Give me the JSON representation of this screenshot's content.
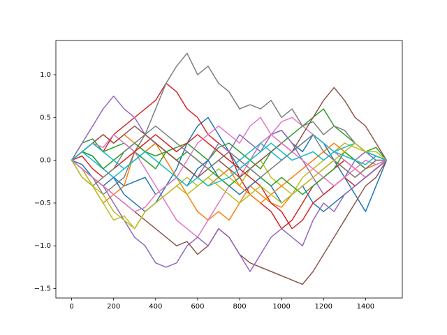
{
  "chart_data": {
    "type": "line",
    "x": [
      0,
      50,
      100,
      150,
      200,
      250,
      300,
      350,
      400,
      450,
      500,
      550,
      600,
      650,
      700,
      750,
      800,
      850,
      900,
      950,
      1000,
      1050,
      1100,
      1150,
      1200,
      1250,
      1300,
      1350,
      1400,
      1450,
      1500
    ],
    "xlim": [
      -75,
      1575
    ],
    "xticks": [
      0,
      200,
      400,
      600,
      800,
      1000,
      1200,
      1400
    ],
    "ylim": [
      -1.61,
      1.4
    ],
    "yticks": [
      {
        "value": -1.5,
        "label": "−1.5"
      },
      {
        "value": -1.0,
        "label": "−1.0"
      },
      {
        "value": -0.5,
        "label": "−0.5"
      },
      {
        "value": 0,
        "label": "0.0"
      },
      {
        "value": 0.5,
        "label": "0.5"
      },
      {
        "value": 1.0,
        "label": "1.0"
      }
    ],
    "series": [
      {
        "color": "#1f77b4",
        "values": [
          0,
          0.1,
          0.05,
          -0.1,
          -0.2,
          -0.3,
          -0.25,
          -0.2,
          -0.4,
          -0.3,
          -0.1,
          0.2,
          0.4,
          0.5,
          0.3,
          0.1,
          -0.1,
          0,
          0.2,
          0.3,
          0.35,
          0.2,
          0.1,
          0.3,
          0.2,
          0,
          -0.2,
          -0.4,
          -0.6,
          -0.3,
          0
        ]
      },
      {
        "color": "#ff7f0e",
        "values": [
          0,
          -0.1,
          -0.3,
          -0.5,
          -0.4,
          -0.3,
          0.1,
          0.3,
          0.2,
          0,
          -0.2,
          -0.4,
          -0.6,
          -0.7,
          -0.6,
          -0.7,
          -0.5,
          -0.3,
          -0.4,
          -0.5,
          -0.55,
          -0.4,
          -0.3,
          -0.2,
          -0.1,
          0,
          -0.1,
          -0.2,
          -0.1,
          0,
          0
        ]
      },
      {
        "color": "#2ca02c",
        "values": [
          0,
          0.2,
          0.25,
          0.1,
          0.15,
          0.2,
          0.1,
          0,
          -0.1,
          0.1,
          0.15,
          0.2,
          0.1,
          0,
          0.15,
          0.2,
          0.1,
          0,
          -0.1,
          0.1,
          0.2,
          0.3,
          0.4,
          0.5,
          0.6,
          0.4,
          0.3,
          0.2,
          0.1,
          0.15,
          0
        ]
      },
      {
        "color": "#d62728",
        "values": [
          0,
          0.1,
          0.2,
          0.1,
          0.3,
          0.4,
          0.5,
          0.6,
          0.7,
          0.9,
          0.8,
          0.6,
          0.5,
          0.3,
          0.2,
          0.1,
          -0.2,
          -0.4,
          -0.5,
          -0.6,
          -0.8,
          -0.7,
          -0.5,
          -0.3,
          -0.2,
          -0.1,
          0,
          -0.1,
          -0.2,
          -0.1,
          0
        ]
      },
      {
        "color": "#9467bd",
        "values": [
          0,
          0.2,
          0.4,
          0.6,
          0.75,
          0.6,
          0.5,
          0.3,
          0.2,
          0.1,
          0,
          -0.1,
          -0.2,
          0,
          0.2,
          0.1,
          0.3,
          0.2,
          0.1,
          0.3,
          0.35,
          0.2,
          0,
          -0.2,
          -0.4,
          -0.3,
          -0.2,
          0,
          0.1,
          0,
          0
        ]
      },
      {
        "color": "#8c564b",
        "values": [
          0,
          -0.1,
          -0.2,
          -0.3,
          -0.4,
          -0.5,
          -0.6,
          -0.7,
          -0.8,
          -0.9,
          -1.0,
          -0.95,
          -1.1,
          -1.0,
          -0.8,
          -0.9,
          -1.1,
          -1.2,
          -1.25,
          -1.3,
          -1.35,
          -1.4,
          -1.45,
          -1.3,
          -1.1,
          -0.9,
          -0.7,
          -0.5,
          -0.3,
          -0.2,
          0
        ]
      },
      {
        "color": "#e377c2",
        "values": [
          0,
          0.1,
          0.2,
          0.15,
          0.3,
          0.2,
          0.1,
          -0.1,
          -0.3,
          -0.5,
          -0.7,
          -0.8,
          -0.9,
          -0.7,
          -0.5,
          -0.3,
          -0.2,
          0,
          0.2,
          0.3,
          0.45,
          0.5,
          0.4,
          0.3,
          0.2,
          0.1,
          0,
          -0.1,
          -0.2,
          -0.1,
          0
        ]
      },
      {
        "color": "#7f7f7f",
        "values": [
          0,
          -0.1,
          -0.2,
          -0.4,
          -0.3,
          -0.2,
          0.1,
          0.3,
          0.6,
          0.9,
          1.1,
          1.25,
          1.0,
          1.1,
          0.9,
          0.8,
          0.6,
          0.65,
          0.6,
          0.7,
          0.5,
          0.6,
          0.4,
          0.45,
          0.3,
          0.4,
          0.35,
          0.2,
          0.1,
          0.05,
          0
        ]
      },
      {
        "color": "#bcbd22",
        "values": [
          0,
          -0.1,
          -0.3,
          -0.5,
          -0.7,
          -0.65,
          -0.8,
          -0.6,
          -0.5,
          -0.4,
          -0.3,
          -0.2,
          -0.3,
          -0.2,
          -0.1,
          -0.2,
          -0.3,
          -0.1,
          0,
          -0.2,
          -0.3,
          -0.4,
          -0.2,
          -0.1,
          0,
          0.1,
          0.2,
          0.15,
          0.1,
          0.05,
          0
        ]
      },
      {
        "color": "#17becf",
        "values": [
          0,
          0.1,
          0,
          -0.1,
          -0.2,
          -0.1,
          0,
          0.1,
          0.2,
          0.1,
          0,
          -0.1,
          -0.2,
          -0.3,
          -0.2,
          -0.1,
          0,
          0.1,
          0.2,
          0.1,
          0,
          0.1,
          0.2,
          0.3,
          0.2,
          0.1,
          0.15,
          0.2,
          0.1,
          0.05,
          0
        ]
      },
      {
        "color": "#1f77b4",
        "values": [
          0,
          -0.05,
          -0.2,
          -0.3,
          -0.2,
          -0.4,
          -0.5,
          -0.6,
          -0.5,
          -0.3,
          -0.2,
          -0.3,
          -0.1,
          0,
          -0.2,
          -0.3,
          -0.4,
          -0.3,
          -0.2,
          -0.3,
          -0.5,
          -0.4,
          -0.3,
          -0.5,
          -0.6,
          -0.5,
          -0.4,
          -0.3,
          -0.2,
          -0.1,
          0
        ]
      },
      {
        "color": "#ff7f0e",
        "values": [
          0,
          0.1,
          0.2,
          0.3,
          0.2,
          0.3,
          0.2,
          0.1,
          0.2,
          0.1,
          0,
          -0.1,
          -0.2,
          -0.3,
          -0.2,
          -0.1,
          -0.3,
          -0.4,
          -0.5,
          -0.4,
          -0.3,
          -0.2,
          -0.1,
          0,
          0.1,
          0.2,
          0.1,
          0,
          -0.1,
          -0.05,
          0
        ]
      },
      {
        "color": "#2ca02c",
        "values": [
          0,
          0.1,
          0.05,
          -0.1,
          0,
          0.1,
          0.2,
          0.1,
          0.05,
          0.1,
          0,
          0.1,
          0,
          -0.1,
          -0.2,
          -0.3,
          -0.2,
          -0.1,
          -0.2,
          -0.3,
          -0.2,
          -0.3,
          -0.4,
          -0.3,
          -0.2,
          -0.1,
          0.1,
          0,
          -0.1,
          0,
          0
        ]
      },
      {
        "color": "#d62728",
        "values": [
          0,
          0.05,
          -0.1,
          -0.2,
          -0.1,
          0,
          0.1,
          0.2,
          0.3,
          0.2,
          0.1,
          0.2,
          0.3,
          0.2,
          0.1,
          0,
          -0.1,
          -0.2,
          -0.3,
          -0.5,
          -0.6,
          -0.8,
          -0.7,
          -0.5,
          -0.4,
          -0.3,
          -0.2,
          -0.3,
          -0.2,
          -0.1,
          0
        ]
      },
      {
        "color": "#9467bd",
        "values": [
          0,
          -0.1,
          -0.2,
          -0.3,
          -0.5,
          -0.7,
          -0.9,
          -1.0,
          -1.2,
          -1.25,
          -1.2,
          -1.0,
          -0.9,
          -1.0,
          -0.8,
          -0.9,
          -1.1,
          -1.3,
          -1.1,
          -0.9,
          -0.8,
          -0.9,
          -1.0,
          -0.7,
          -0.5,
          -0.6,
          -0.4,
          -0.3,
          -0.2,
          -0.1,
          0
        ]
      },
      {
        "color": "#8c564b",
        "values": [
          0,
          0.1,
          0.2,
          0.3,
          0.2,
          0.3,
          0.4,
          0.3,
          0.2,
          0.1,
          0,
          -0.1,
          -0.2,
          -0.1,
          0,
          -0.1,
          -0.2,
          -0.1,
          0,
          0.1,
          0.2,
          0.1,
          0.3,
          0.5,
          0.7,
          0.85,
          0.7,
          0.5,
          0.4,
          0.2,
          0
        ]
      },
      {
        "color": "#e377c2",
        "values": [
          0,
          -0.1,
          -0.2,
          -0.3,
          -0.4,
          -0.5,
          -0.6,
          -0.55,
          -0.4,
          -0.3,
          -0.2,
          0,
          0.2,
          0.3,
          0.4,
          0.3,
          0.2,
          0.4,
          0.5,
          0.3,
          0.2,
          0.1,
          0,
          -0.1,
          -0.2,
          -0.3,
          -0.2,
          -0.1,
          0,
          -0.05,
          0
        ]
      },
      {
        "color": "#7f7f7f",
        "values": [
          0,
          -0.2,
          -0.3,
          -0.2,
          -0.1,
          0.1,
          0.2,
          0.3,
          0.4,
          0.3,
          0.2,
          0.1,
          0,
          -0.1,
          0,
          0.1,
          0,
          -0.1,
          -0.2,
          -0.1,
          0,
          0.1,
          0.2,
          0.3,
          0.1,
          0,
          -0.1,
          -0.2,
          -0.1,
          0,
          0
        ]
      },
      {
        "color": "#bcbd22",
        "values": [
          0,
          -0.2,
          -0.3,
          -0.4,
          -0.6,
          -0.7,
          -0.8,
          -0.6,
          -0.5,
          -0.4,
          -0.3,
          -0.4,
          -0.3,
          -0.2,
          -0.3,
          -0.4,
          -0.5,
          -0.4,
          -0.3,
          -0.4,
          -0.5,
          -0.4,
          -0.3,
          -0.2,
          -0.1,
          0,
          0.1,
          0.2,
          0.1,
          0.1,
          0
        ]
      },
      {
        "color": "#17becf",
        "values": [
          0,
          0.1,
          0.2,
          0.1,
          0,
          -0.1,
          0,
          0.1,
          0,
          -0.1,
          -0.2,
          -0.3,
          -0.2,
          -0.3,
          -0.25,
          -0.2,
          -0.1,
          0,
          0.1,
          0.2,
          0.1,
          0,
          0.05,
          0.1,
          0,
          0.1,
          0.05,
          0,
          -0.05,
          0.05,
          0
        ]
      }
    ]
  }
}
